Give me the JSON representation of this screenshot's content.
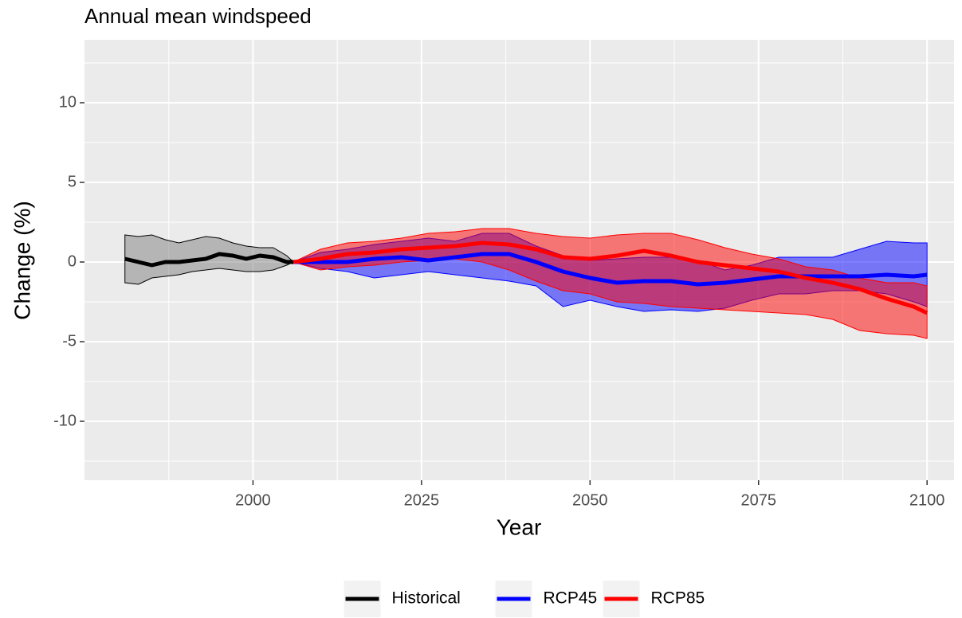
{
  "chart_data": {
    "type": "ribbon-line",
    "title": "Annual mean windspeed",
    "x_label": "Year",
    "y_label": "Change (%)",
    "xlim": [
      1975,
      2104
    ],
    "ylim": [
      -13.7,
      13.95
    ],
    "xticks": [
      2000,
      2025,
      2050,
      2075,
      2100
    ],
    "yticks": [
      -10,
      -5,
      0,
      5,
      10
    ],
    "grid": true,
    "legend": "bottom",
    "series": [
      {
        "name": "Historical",
        "color": "#000000",
        "fill": "#7f7f7f",
        "x": [
          1981,
          1983,
          1985,
          1987,
          1989,
          1991,
          1993,
          1995,
          1997,
          1999,
          2001,
          2003,
          2005,
          2006
        ],
        "values": [
          0.2,
          0.0,
          -0.2,
          0.0,
          0.0,
          0.1,
          0.2,
          0.5,
          0.4,
          0.2,
          0.4,
          0.3,
          0.0,
          0.0
        ],
        "lower": [
          -1.3,
          -1.4,
          -1.0,
          -0.9,
          -0.8,
          -0.6,
          -0.5,
          -0.4,
          -0.5,
          -0.6,
          -0.6,
          -0.5,
          -0.2,
          0
        ],
        "upper": [
          1.7,
          1.6,
          1.7,
          1.4,
          1.2,
          1.4,
          1.6,
          1.5,
          1.2,
          1.0,
          0.9,
          0.9,
          0.4,
          0
        ]
      },
      {
        "name": "RCP45",
        "color": "#0000ff",
        "fill": "#0000ff",
        "x": [
          2006,
          2010,
          2014,
          2018,
          2022,
          2026,
          2030,
          2034,
          2038,
          2042,
          2046,
          2050,
          2054,
          2058,
          2062,
          2066,
          2070,
          2074,
          2078,
          2082,
          2086,
          2090,
          2094,
          2098,
          2100
        ],
        "values": [
          0,
          0,
          0.0,
          0.2,
          0.3,
          0.1,
          0.3,
          0.5,
          0.5,
          0.0,
          -0.6,
          -1.0,
          -1.3,
          -1.2,
          -1.2,
          -1.4,
          -1.3,
          -1.1,
          -0.9,
          -0.9,
          -0.9,
          -0.9,
          -0.8,
          -0.9,
          -0.8
        ],
        "lower": [
          0,
          -0.4,
          -0.6,
          -1.0,
          -0.8,
          -0.6,
          -0.8,
          -1.0,
          -1.2,
          -1.5,
          -2.8,
          -2.4,
          -2.8,
          -3.1,
          -3.0,
          -3.1,
          -2.9,
          -2.4,
          -2.0,
          -2.0,
          -1.8,
          -1.8,
          -2.0,
          -2.5,
          -2.8
        ],
        "upper": [
          0,
          0.6,
          0.8,
          1.1,
          1.3,
          1.5,
          1.3,
          1.8,
          1.8,
          1.0,
          0.4,
          0.1,
          0.2,
          0.3,
          0.3,
          0.1,
          -0.5,
          -0.2,
          0.3,
          0.3,
          0.3,
          0.8,
          1.3,
          1.2,
          1.2
        ]
      },
      {
        "name": "RCP85",
        "color": "#ff0000",
        "fill": "#ff0000",
        "x": [
          2006,
          2010,
          2014,
          2018,
          2022,
          2026,
          2030,
          2034,
          2038,
          2042,
          2046,
          2050,
          2054,
          2058,
          2062,
          2066,
          2070,
          2074,
          2078,
          2082,
          2086,
          2090,
          2094,
          2098,
          2100
        ],
        "values": [
          0,
          0.2,
          0.5,
          0.6,
          0.8,
          0.9,
          1.0,
          1.2,
          1.1,
          0.8,
          0.3,
          0.2,
          0.4,
          0.7,
          0.4,
          0.0,
          -0.2,
          -0.4,
          -0.6,
          -1.0,
          -1.3,
          -1.7,
          -2.3,
          -2.8,
          -3.2
        ],
        "lower": [
          0,
          -0.5,
          -0.3,
          -0.2,
          0.0,
          0.1,
          0.2,
          0.0,
          -0.5,
          -1.2,
          -1.8,
          -2.0,
          -2.5,
          -2.6,
          -2.8,
          -2.9,
          -3.0,
          -3.1,
          -3.2,
          -3.3,
          -3.6,
          -4.3,
          -4.5,
          -4.6,
          -4.8
        ],
        "upper": [
          0,
          0.8,
          1.2,
          1.3,
          1.5,
          1.8,
          1.9,
          2.1,
          2.1,
          1.8,
          1.6,
          1.5,
          1.7,
          1.8,
          1.8,
          1.4,
          0.9,
          0.5,
          0.2,
          -0.3,
          -0.5,
          -1.0,
          -1.3,
          -1.3,
          -1.5
        ]
      }
    ]
  }
}
